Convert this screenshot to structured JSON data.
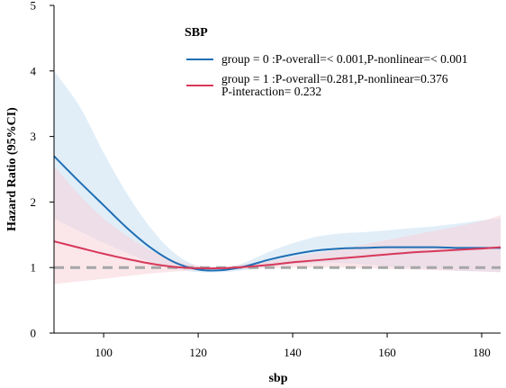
{
  "chart_data": {
    "type": "line",
    "title": "",
    "xlabel": "sbp",
    "ylabel": "Hazard Ratio (95%CI)",
    "xlim": [
      89.5,
      184
    ],
    "ylim": [
      0,
      5
    ],
    "xticks": [
      100,
      120,
      140,
      160,
      180
    ],
    "yticks": [
      0,
      1,
      2,
      3,
      4,
      5
    ],
    "grid": false,
    "legend": {
      "title": "SBP",
      "position": "top-right",
      "entries": [
        {
          "text": "group = 0 :P-overall=< 0.001,P-nonlinear=< 0.001",
          "color": "#1f6fb5"
        },
        {
          "text": "group = 1 :P-overall=0.281,P-nonlinear=0.376",
          "color": "#d7385a"
        }
      ],
      "note": "P-interaction= 0.232"
    },
    "reference_line": {
      "y": 1,
      "color": "#a6a6a6",
      "style": "dashed"
    },
    "series": [
      {
        "color": "#1f6fb5",
        "band_color": "#c9e0f2",
        "x": [
          89.5,
          95,
          100,
          105,
          110,
          115,
          120,
          125,
          130,
          135,
          140,
          145,
          150,
          155,
          160,
          165,
          170,
          175,
          180,
          184
        ],
        "values": [
          2.7,
          2.3,
          1.95,
          1.6,
          1.3,
          1.08,
          0.97,
          0.96,
          1.02,
          1.12,
          1.2,
          1.26,
          1.29,
          1.3,
          1.31,
          1.31,
          1.31,
          1.3,
          1.3,
          1.3
        ],
        "lower": [
          1.75,
          1.55,
          1.38,
          1.22,
          1.08,
          0.98,
          0.93,
          0.93,
          0.96,
          1.01,
          1.05,
          1.07,
          1.07,
          1.05,
          1.02,
          0.99,
          0.97,
          0.95,
          0.94,
          0.93
        ],
        "upper": [
          4.0,
          3.45,
          2.75,
          2.12,
          1.6,
          1.22,
          1.02,
          0.99,
          1.08,
          1.24,
          1.37,
          1.47,
          1.52,
          1.54,
          1.57,
          1.6,
          1.63,
          1.67,
          1.72,
          1.75
        ]
      },
      {
        "color": "#d7385a",
        "band_color": "#f7d2d9",
        "x": [
          89.5,
          95,
          100,
          105,
          110,
          115,
          120,
          125,
          130,
          135,
          140,
          145,
          150,
          155,
          160,
          165,
          170,
          175,
          180,
          184
        ],
        "values": [
          1.4,
          1.3,
          1.21,
          1.13,
          1.06,
          1.01,
          0.99,
          0.99,
          1.01,
          1.04,
          1.08,
          1.11,
          1.14,
          1.17,
          1.2,
          1.23,
          1.25,
          1.27,
          1.29,
          1.31
        ],
        "lower": [
          0.75,
          0.79,
          0.83,
          0.87,
          0.91,
          0.94,
          0.96,
          0.97,
          0.98,
          0.99,
          1.0,
          1.0,
          1.0,
          0.99,
          0.98,
          0.97,
          0.96,
          0.95,
          0.94,
          0.93
        ],
        "upper": [
          2.55,
          2.1,
          1.75,
          1.48,
          1.26,
          1.11,
          1.03,
          1.01,
          1.05,
          1.1,
          1.16,
          1.22,
          1.28,
          1.35,
          1.42,
          1.49,
          1.56,
          1.63,
          1.71,
          1.8
        ]
      }
    ]
  }
}
